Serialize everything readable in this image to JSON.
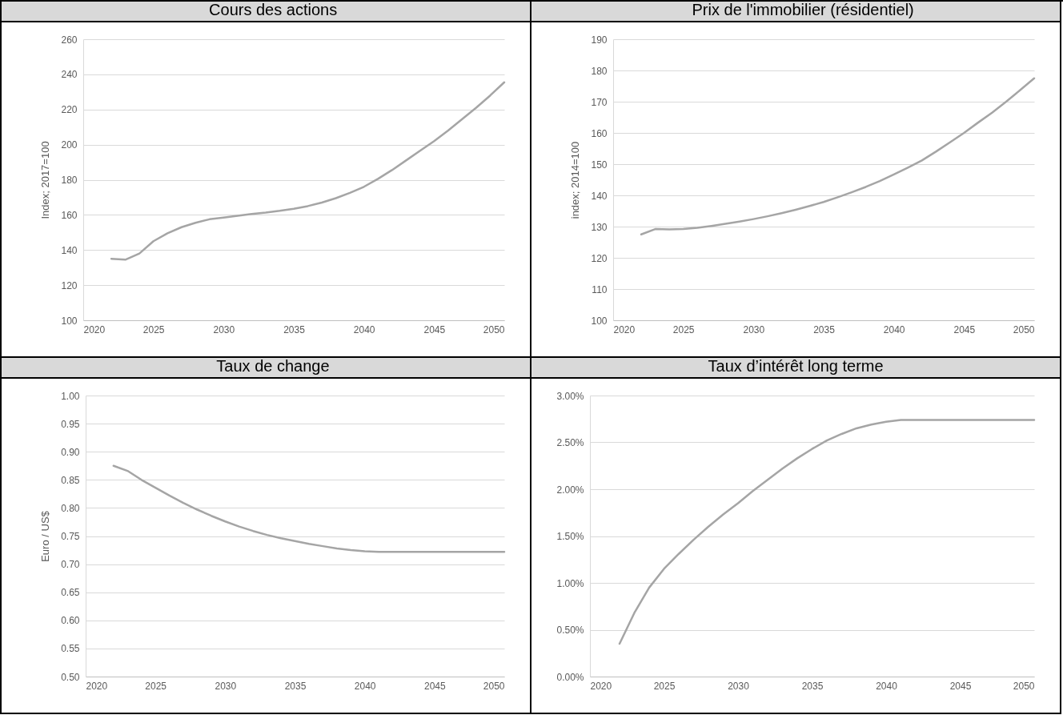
{
  "chart_data": [
    {
      "type": "line",
      "title": "Cours des actions",
      "ylabel": "Index; 2017=100",
      "grid": "y",
      "xlim": [
        2020,
        2050
      ],
      "xticks": [
        2020,
        2025,
        2030,
        2035,
        2040,
        2045,
        2050
      ],
      "ylim": [
        100,
        260
      ],
      "yticks": [
        100,
        120,
        140,
        160,
        180,
        200,
        220,
        240,
        260
      ],
      "x": [
        2022,
        2023,
        2024,
        2025,
        2026,
        2027,
        2028,
        2029,
        2030,
        2031,
        2032,
        2033,
        2034,
        2035,
        2036,
        2037,
        2038,
        2039,
        2040,
        2041,
        2042,
        2043,
        2044,
        2045,
        2046,
        2047,
        2048,
        2049,
        2050
      ],
      "series": [
        {
          "color": "#a5a5a5",
          "values": [
            135,
            134.5,
            138,
            145,
            149.5,
            153,
            155.5,
            157.5,
            158.5,
            159.5,
            160.5,
            161.3,
            162.3,
            163.5,
            165,
            167,
            169.5,
            172.5,
            176,
            180.5,
            185.5,
            191,
            196.5,
            202,
            208,
            214.5,
            221,
            228,
            235.5
          ]
        }
      ]
    },
    {
      "type": "line",
      "title": "Prix de l'immobilier (résidentiel)",
      "ylabel": "index; 2014=100",
      "grid": "y",
      "xlim": [
        2020,
        2050
      ],
      "xticks": [
        2020,
        2025,
        2030,
        2035,
        2040,
        2045,
        2050
      ],
      "ylim": [
        100,
        190
      ],
      "yticks": [
        100,
        110,
        120,
        130,
        140,
        150,
        160,
        170,
        180,
        190
      ],
      "x": [
        2022,
        2023,
        2024,
        2025,
        2026,
        2027,
        2028,
        2029,
        2030,
        2031,
        2032,
        2033,
        2034,
        2035,
        2036,
        2037,
        2038,
        2039,
        2040,
        2041,
        2042,
        2043,
        2044,
        2045,
        2046,
        2047,
        2048,
        2049,
        2050
      ],
      "series": [
        {
          "color": "#a5a5a5",
          "values": [
            127.5,
            129.2,
            129.1,
            129.2,
            129.6,
            130.2,
            130.9,
            131.6,
            132.4,
            133.3,
            134.3,
            135.4,
            136.6,
            137.9,
            139.4,
            141,
            142.7,
            144.6,
            146.7,
            148.9,
            151.2,
            154,
            157,
            160,
            163.3,
            166.5,
            170,
            173.7,
            177.5
          ]
        }
      ]
    },
    {
      "type": "line",
      "title": "Taux de change",
      "ylabel": "Euro / US$",
      "grid": "y",
      "xlim": [
        2020,
        2050
      ],
      "xticks": [
        2020,
        2025,
        2030,
        2035,
        2040,
        2045,
        2050
      ],
      "ylim": [
        0.5,
        1.0
      ],
      "yticks": [
        {
          "value": 0.5,
          "label": "0.50"
        },
        0.55,
        {
          "value": 0.6,
          "label": "0.60"
        },
        0.65,
        {
          "value": 0.7,
          "label": "0.70"
        },
        0.75,
        {
          "value": 0.8,
          "label": "0.80"
        },
        0.85,
        {
          "value": 0.9,
          "label": "0.90"
        },
        0.95,
        {
          "value": 1.0,
          "label": "1.00"
        }
      ],
      "x": [
        2022,
        2023,
        2024,
        2025,
        2026,
        2027,
        2028,
        2029,
        2030,
        2031,
        2032,
        2033,
        2034,
        2035,
        2036,
        2037,
        2038,
        2039,
        2040,
        2041,
        2042,
        2043,
        2044,
        2045,
        2046,
        2047,
        2048,
        2049,
        2050
      ],
      "series": [
        {
          "color": "#a5a5a5",
          "values": [
            0.875,
            0.866,
            0.85,
            0.836,
            0.822,
            0.809,
            0.797,
            0.786,
            0.776,
            0.767,
            0.759,
            0.752,
            0.746,
            0.741,
            0.736,
            0.732,
            0.728,
            0.725,
            0.723,
            0.722,
            0.722,
            0.722,
            0.722,
            0.722,
            0.722,
            0.722,
            0.722,
            0.722,
            0.722
          ]
        }
      ]
    },
    {
      "type": "line",
      "title": "Taux d’intérêt long terme",
      "grid": "y",
      "xlim": [
        2020,
        2050
      ],
      "xticks": [
        2020,
        2025,
        2030,
        2035,
        2040,
        2045,
        2050
      ],
      "ylim": [
        0,
        3
      ],
      "yticks": [
        {
          "value": 0,
          "label": "0.00%"
        },
        {
          "value": 0.5,
          "label": "0.50%"
        },
        {
          "value": 1,
          "label": "1.00%"
        },
        {
          "value": 1.5,
          "label": "1.50%"
        },
        {
          "value": 2,
          "label": "2.00%"
        },
        {
          "value": 2.5,
          "label": "2.50%"
        },
        {
          "value": 3,
          "label": "3.00%"
        }
      ],
      "x": [
        2022,
        2023,
        2024,
        2025,
        2026,
        2027,
        2028,
        2029,
        2030,
        2031,
        2032,
        2033,
        2034,
        2035,
        2036,
        2037,
        2038,
        2039,
        2040,
        2041,
        2042,
        2043,
        2044,
        2045,
        2046,
        2047,
        2048,
        2049,
        2050
      ],
      "series": [
        {
          "color": "#a5a5a5",
          "values": [
            0.35,
            0.68,
            0.95,
            1.15,
            1.31,
            1.46,
            1.6,
            1.73,
            1.85,
            1.98,
            2.1,
            2.22,
            2.33,
            2.43,
            2.52,
            2.59,
            2.65,
            2.69,
            2.72,
            2.74,
            2.74,
            2.74,
            2.74,
            2.74,
            2.74,
            2.74,
            2.74,
            2.74,
            2.74
          ]
        }
      ]
    }
  ]
}
